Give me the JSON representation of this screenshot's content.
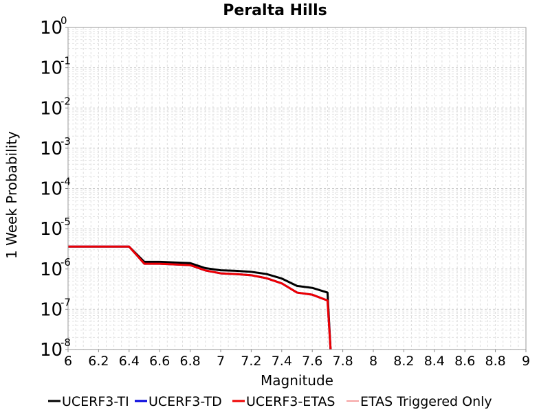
{
  "chart_data": {
    "type": "line",
    "title": "Peralta Hills",
    "xlabel": "Magnitude",
    "ylabel": "1 Week Probability",
    "xlim": [
      6,
      9
    ],
    "ylim": [
      1e-08,
      1
    ],
    "y_scale": "log",
    "grid": true,
    "legend_position": "bottom",
    "x_ticks": [
      "6",
      "6.2",
      "6.4",
      "6.6",
      "6.8",
      "7",
      "7.2",
      "7.4",
      "7.6",
      "7.8",
      "8",
      "8.2",
      "8.4",
      "8.6",
      "8.8",
      "9"
    ],
    "y_ticks": [
      {
        "base": "10",
        "exp": "0"
      },
      {
        "base": "10",
        "exp": "-1"
      },
      {
        "base": "10",
        "exp": "-2"
      },
      {
        "base": "10",
        "exp": "-3"
      },
      {
        "base": "10",
        "exp": "-4"
      },
      {
        "base": "10",
        "exp": "-5"
      },
      {
        "base": "10",
        "exp": "-6"
      },
      {
        "base": "10",
        "exp": "-7"
      },
      {
        "base": "10",
        "exp": "-8"
      }
    ],
    "series": [
      {
        "name": "UCERF3-TI",
        "color": "#000000",
        "width": 3,
        "x": [
          6.0,
          6.1,
          6.2,
          6.3,
          6.4,
          6.5,
          6.6,
          6.7,
          6.8,
          6.9,
          7.0,
          7.1,
          7.2,
          7.3,
          7.4,
          7.5,
          7.6,
          7.7,
          7.72
        ],
        "y": [
          3.6e-06,
          3.6e-06,
          3.6e-06,
          3.6e-06,
          3.6e-06,
          1.5e-06,
          1.5e-06,
          1.45e-06,
          1.4e-06,
          1.05e-06,
          9.3e-07,
          9e-07,
          8.5e-07,
          7.5e-07,
          5.8e-07,
          3.8e-07,
          3.4e-07,
          2.6e-07,
          1e-08
        ]
      },
      {
        "name": "UCERF3-TD",
        "color": "#0000dd",
        "width": 3,
        "x": [
          6.0,
          6.1,
          6.2,
          6.3,
          6.4,
          6.5,
          6.6,
          6.7,
          6.8,
          6.9,
          7.0,
          7.1,
          7.2,
          7.3,
          7.4,
          7.5,
          7.6,
          7.7,
          7.72
        ],
        "y": [
          3.6e-06,
          3.6e-06,
          3.6e-06,
          3.6e-06,
          3.6e-06,
          1.35e-06,
          1.35e-06,
          1.3e-06,
          1.25e-06,
          9.2e-07,
          7.8e-07,
          7.5e-07,
          7e-07,
          5.9e-07,
          4.4e-07,
          2.6e-07,
          2.3e-07,
          1.65e-07,
          1e-08
        ]
      },
      {
        "name": "UCERF3-ETAS",
        "color": "#ee0000",
        "width": 3,
        "x": [
          6.0,
          6.1,
          6.2,
          6.3,
          6.4,
          6.5,
          6.6,
          6.7,
          6.8,
          6.9,
          7.0,
          7.1,
          7.2,
          7.3,
          7.4,
          7.5,
          7.6,
          7.7,
          7.72
        ],
        "y": [
          3.6e-06,
          3.6e-06,
          3.6e-06,
          3.6e-06,
          3.6e-06,
          1.35e-06,
          1.35e-06,
          1.3e-06,
          1.25e-06,
          9.2e-07,
          7.8e-07,
          7.5e-07,
          7e-07,
          5.9e-07,
          4.4e-07,
          2.6e-07,
          2.3e-07,
          1.65e-07,
          1e-08
        ]
      },
      {
        "name": "ETAS Triggered Only",
        "color": "#ee4444",
        "width": 1,
        "x": [],
        "y": []
      }
    ]
  }
}
